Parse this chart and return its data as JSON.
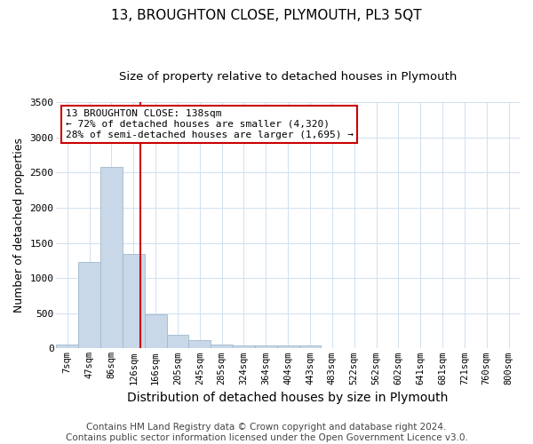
{
  "title": "13, BROUGHTON CLOSE, PLYMOUTH, PL3 5QT",
  "subtitle": "Size of property relative to detached houses in Plymouth",
  "xlabel": "Distribution of detached houses by size in Plymouth",
  "ylabel": "Number of detached properties",
  "categories": [
    "7sqm",
    "47sqm",
    "86sqm",
    "126sqm",
    "166sqm",
    "205sqm",
    "245sqm",
    "285sqm",
    "324sqm",
    "364sqm",
    "404sqm",
    "443sqm",
    "483sqm",
    "522sqm",
    "562sqm",
    "602sqm",
    "641sqm",
    "681sqm",
    "721sqm",
    "760sqm",
    "800sqm"
  ],
  "values": [
    60,
    1230,
    2580,
    1340,
    490,
    200,
    120,
    55,
    45,
    45,
    45,
    40,
    0,
    0,
    0,
    0,
    0,
    0,
    0,
    0,
    0
  ],
  "bar_color": "#c8d8e8",
  "bar_edge_color": "#a0b8cc",
  "vline_x_index": 3.3,
  "vline_color": "#cc0000",
  "ylim": [
    0,
    3500
  ],
  "annotation_text": "13 BROUGHTON CLOSE: 138sqm\n← 72% of detached houses are smaller (4,320)\n28% of semi-detached houses are larger (1,695) →",
  "annotation_box_color": "#ffffff",
  "annotation_box_edge_color": "#cc0000",
  "footer_line1": "Contains HM Land Registry data © Crown copyright and database right 2024.",
  "footer_line2": "Contains public sector information licensed under the Open Government Licence v3.0.",
  "title_fontsize": 11,
  "subtitle_fontsize": 9.5,
  "xlabel_fontsize": 10,
  "ylabel_fontsize": 9,
  "tick_fontsize": 7.5,
  "footer_fontsize": 7.5,
  "annot_fontsize": 8
}
